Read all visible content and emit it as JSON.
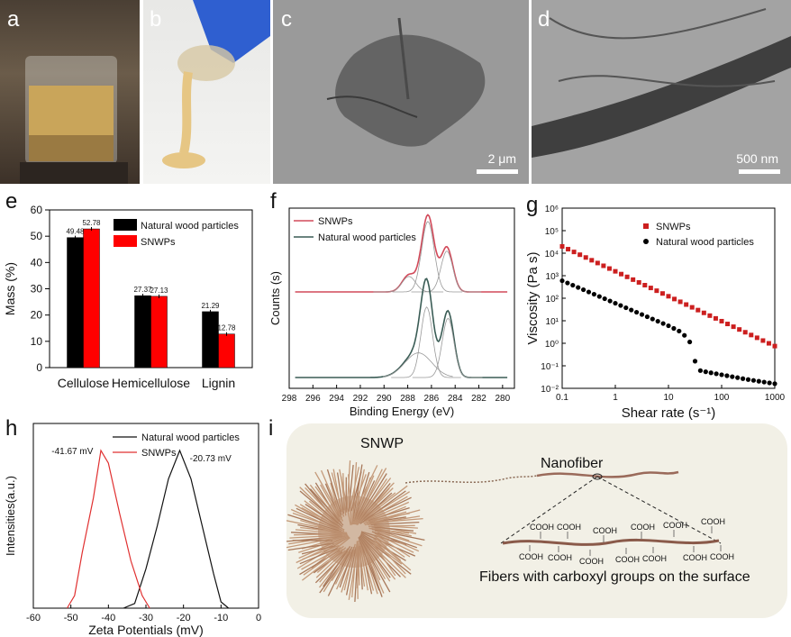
{
  "panel_labels": {
    "a": "a",
    "b": "b",
    "c": "c",
    "d": "d",
    "e": "e",
    "f": "f",
    "g": "g",
    "h": "h",
    "i": "i"
  },
  "scale_bars": {
    "c": "2 μm",
    "d": "500 nm"
  },
  "chart_data": [
    {
      "id": "e",
      "type": "bar",
      "categories": [
        "Cellulose",
        "Hemicellulose",
        "Lignin"
      ],
      "series": [
        {
          "name": "Natural wood particles",
          "color": "#000000",
          "values": [
            49.48,
            27.37,
            21.29
          ],
          "labels": [
            "49.48",
            "27.37",
            "21.29"
          ]
        },
        {
          "name": "SNWPs",
          "color": "#ff0000",
          "values": [
            52.78,
            27.13,
            12.78
          ],
          "labels": [
            "52.78",
            "27.13",
            "12.78"
          ]
        }
      ],
      "ylabel": "Mass (%)",
      "ylim": [
        0,
        60
      ],
      "yticks": [
        "0",
        "10",
        "20",
        "30",
        "40",
        "50",
        "60"
      ]
    },
    {
      "id": "f",
      "type": "line",
      "xlabel": "Binding Energy (eV)",
      "ylabel": "Counts (s)",
      "xlim": [
        298,
        279
      ],
      "xticks": [
        "298",
        "296",
        "294",
        "292",
        "290",
        "288",
        "286",
        "284",
        "282",
        "280"
      ],
      "series": [
        {
          "name": "SNWPs",
          "color": "#d24a5a",
          "peaks": [
            {
              "center": 286.3,
              "height": 1.0,
              "width": 0.75
            },
            {
              "center": 284.7,
              "height": 0.58,
              "width": 0.7
            },
            {
              "center": 287.9,
              "height": 0.22,
              "width": 0.8
            }
          ]
        },
        {
          "name": "Natural wood particles",
          "color": "#3a5c55",
          "peaks": [
            {
              "center": 286.4,
              "height": 1.0,
              "width": 0.7
            },
            {
              "center": 284.6,
              "height": 0.84,
              "width": 0.7
            },
            {
              "center": 287.1,
              "height": 0.35,
              "width": 1.6
            }
          ]
        }
      ]
    },
    {
      "id": "g",
      "type": "scatter",
      "xlabel": "Shear rate (s⁻¹)",
      "ylabel": "Viscosity (Pa s)",
      "xscale": "log",
      "yscale": "log",
      "xlim": [
        0.1,
        1000
      ],
      "ylim": [
        0.01,
        1000000
      ],
      "xticks": [
        "0.1",
        "1",
        "10",
        "100",
        "1000"
      ],
      "yticks": [
        "10⁻²",
        "10⁻¹",
        "10⁰",
        "10¹",
        "10²",
        "10³",
        "10⁴",
        "10⁵",
        "10⁶"
      ],
      "series": [
        {
          "name": "SNWPs",
          "color": "#cc1f1f",
          "marker": "square",
          "x_range": [
            0.1,
            1000
          ],
          "y_at_x0": 20000,
          "y_at_x1": 0.75
        },
        {
          "name": "Natural wood particles",
          "color": "#000000",
          "marker": "circle",
          "points": [
            [
              0.1,
              600
            ],
            [
              1,
              60
            ],
            [
              5,
              12
            ],
            [
              10,
              6
            ],
            [
              18,
              3
            ],
            [
              25,
              1.2
            ],
            [
              30,
              0.2
            ],
            [
              40,
              0.06
            ],
            [
              100,
              0.04
            ],
            [
              300,
              0.025
            ],
            [
              1000,
              0.016
            ]
          ]
        }
      ]
    },
    {
      "id": "h",
      "type": "line",
      "xlabel": "Zeta Potentials (mV)",
      "ylabel": "Intensities(a.u.)",
      "xlim": [
        -60,
        0
      ],
      "xticks": [
        "-60",
        "-50",
        "-40",
        "-30",
        "-20",
        "-10",
        "0"
      ],
      "series": [
        {
          "name": "Natural wood particles",
          "color": "#111111",
          "peak": -20.73,
          "peak_label": "-20.73 mV",
          "points": [
            [
              -36,
              0
            ],
            [
              -33,
              0.03
            ],
            [
              -30,
              0.25
            ],
            [
              -27,
              0.52
            ],
            [
              -24,
              0.82
            ],
            [
              -21,
              1.0
            ],
            [
              -18,
              0.82
            ],
            [
              -15,
              0.52
            ],
            [
              -12,
              0.22
            ],
            [
              -10,
              0.04
            ],
            [
              -8,
              0
            ]
          ]
        },
        {
          "name": "SNWPs",
          "color": "#e03030",
          "peak": -41.67,
          "peak_label": "-41.67 mV",
          "points": [
            [
              -51,
              0
            ],
            [
              -49,
              0.08
            ],
            [
              -47,
              0.35
            ],
            [
              -44,
              0.7
            ],
            [
              -42,
              1.0
            ],
            [
              -40,
              0.92
            ],
            [
              -37,
              0.6
            ],
            [
              -34,
              0.3
            ],
            [
              -31,
              0.08
            ],
            [
              -29,
              0
            ]
          ]
        }
      ]
    }
  ],
  "schematic": {
    "snwp_label": "SNWP",
    "nanofiber_label": "Nanofiber",
    "caption": "Fibers with carboxyl groups on the surface",
    "group": "COOH"
  }
}
